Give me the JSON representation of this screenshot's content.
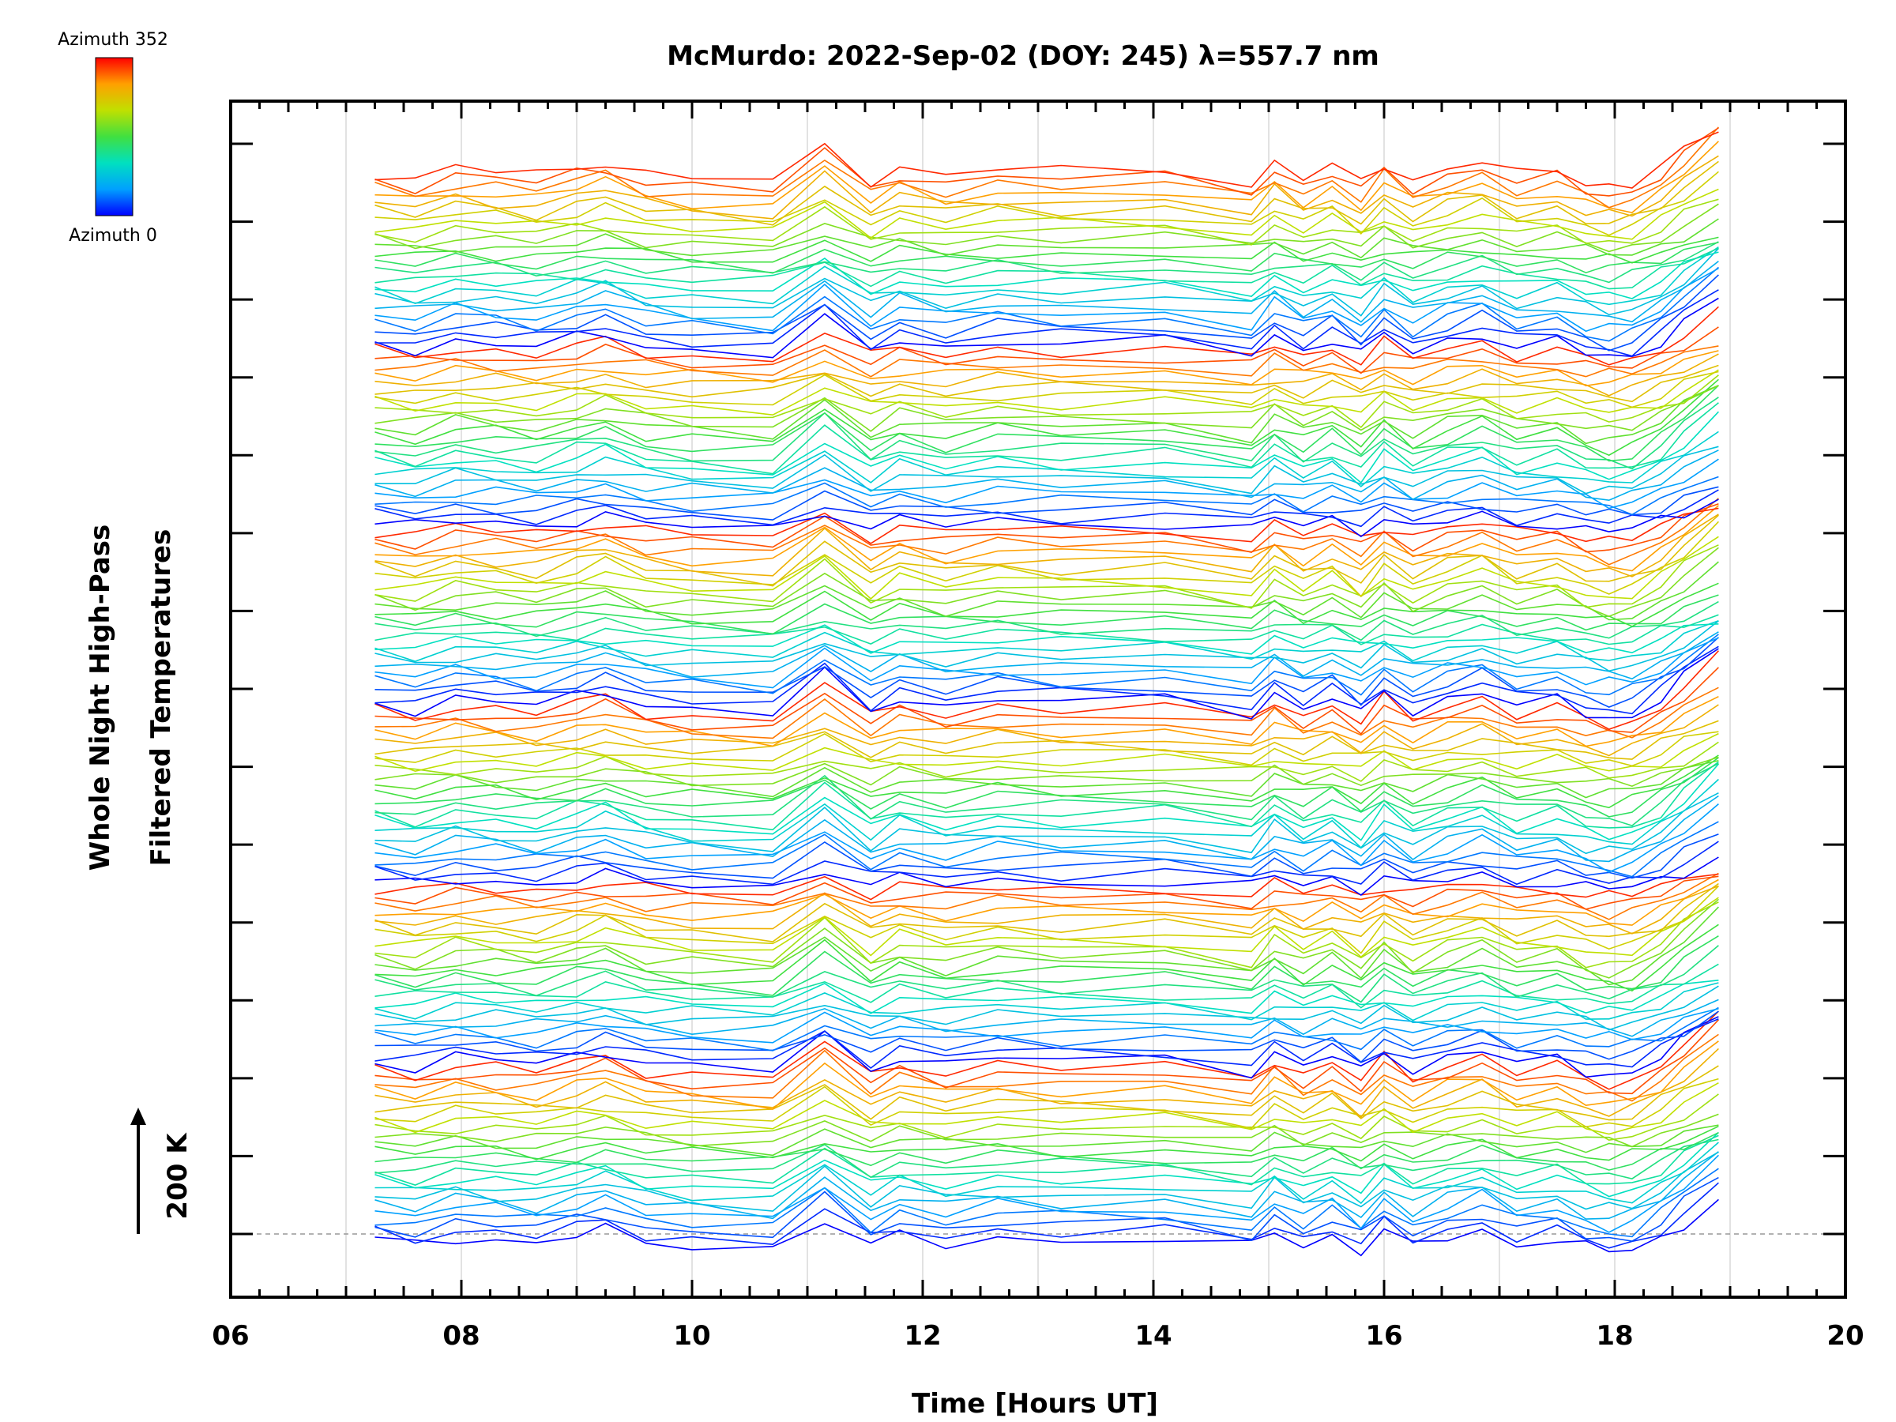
{
  "chart_data": {
    "type": "line",
    "title": "McMurdo: 2022-Sep-02 (DOY: 245) λ=557.7 nm",
    "xlabel": "Time [Hours UT]",
    "ylabel_line1": "Whole Night High-Pass",
    "ylabel_line2": "Filtered Temperatures",
    "xlim": [
      6,
      20
    ],
    "x_ticks": [
      "06",
      "08",
      "10",
      "12",
      "14",
      "16",
      "18",
      "20"
    ],
    "scale_marker": "200 K",
    "colorbar": {
      "top_label": "Azimuth 352",
      "bottom_label": "Azimuth 0",
      "colormap": [
        "#0000ff",
        "#00a0ff",
        "#00e0c0",
        "#40e040",
        "#c0e000",
        "#ffa000",
        "#ff0000"
      ]
    },
    "x": [
      7.25,
      7.6,
      7.95,
      8.3,
      8.65,
      9.0,
      9.25,
      9.6,
      10.0,
      10.7,
      11.15,
      11.55,
      11.8,
      12.2,
      12.65,
      13.2,
      14.1,
      14.85,
      15.05,
      15.3,
      15.55,
      15.8,
      16.0,
      16.25,
      16.55,
      16.85,
      17.15,
      17.5,
      17.75,
      17.95,
      18.15,
      18.4,
      18.6,
      18.9
    ],
    "template_offsets": [
      0,
      -6,
      4,
      1,
      -3,
      6,
      12,
      -2,
      -6,
      -10,
      26,
      -8,
      6,
      -4,
      4,
      0,
      2,
      -10,
      10,
      -6,
      6,
      -12,
      10,
      -8,
      4,
      12,
      -4,
      2,
      -10,
      -14,
      -12,
      4,
      22,
      48
    ],
    "series_count": 144,
    "azimuth_step_deg": 8,
    "groups": 6
  }
}
